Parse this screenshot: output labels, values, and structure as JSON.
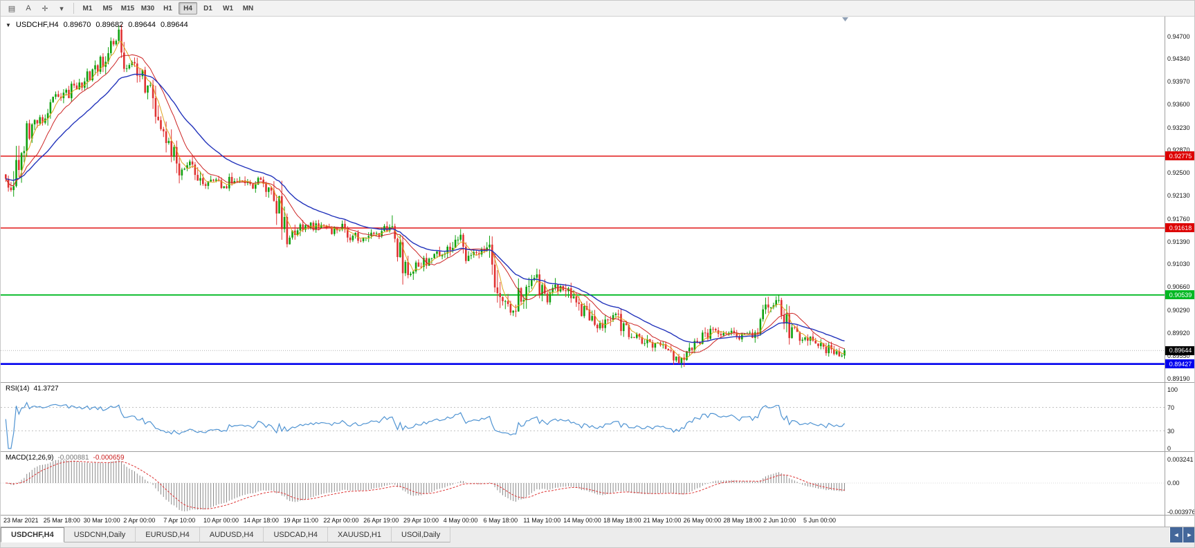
{
  "toolbar": {
    "icons": [
      {
        "name": "chart-grid-icon",
        "glyph": "▤"
      },
      {
        "name": "cursor-a-icon",
        "glyph": "A"
      },
      {
        "name": "crosshair-icon",
        "glyph": "✛"
      },
      {
        "name": "tools-dropdown-icon",
        "glyph": "▾"
      }
    ],
    "timeframes": [
      "M1",
      "M5",
      "M15",
      "M30",
      "H1",
      "H4",
      "D1",
      "W1",
      "MN"
    ],
    "active_timeframe": "H4"
  },
  "chart_header": {
    "expander": "▼",
    "symbol": "USDCHF,H4",
    "open": "0.89670",
    "high": "0.89682",
    "low": "0.89644",
    "close": "0.89644"
  },
  "rsi_panel": {
    "name": "RSI(14)",
    "value": "41.3727",
    "scale_labels": [
      "100",
      "70",
      "30",
      "0"
    ],
    "line_color": "#4f93d2",
    "level_line_color": "#c0c0c0"
  },
  "macd_panel": {
    "name": "MACD(12,26,9)",
    "value_main": "-0.000881",
    "value_signal": "-0.000659",
    "scale_labels": [
      "0.003241",
      "0.00",
      "-0.003976"
    ],
    "histogram_color": "#8a8a8a",
    "signal_color": "#dd3333"
  },
  "time_axis_labels": [
    "23 Mar 2021",
    "25 Mar 18:00",
    "30 Mar 10:00",
    "2 Apr 00:00",
    "7 Apr 10:00",
    "10 Apr 00:00",
    "14 Apr 18:00",
    "19 Apr 11:00",
    "22 Apr 00:00",
    "26 Apr 19:00",
    "29 Apr 10:00",
    "4 May 00:00",
    "6 May 18:00",
    "11 May 10:00",
    "14 May 00:00",
    "18 May 18:00",
    "21 May 10:00",
    "26 May 00:00",
    "28 May 18:00",
    "2 Jun 10:00",
    "5 Jun 00:00"
  ],
  "tab_bar": {
    "tabs": [
      "USDCHF,H4",
      "USDCNH,Daily",
      "EURUSD,H4",
      "AUDUSD,H4",
      "USDCAD,H4",
      "XAUUSD,H1",
      "USOil,Daily"
    ],
    "active_tab": "USDCHF,H4",
    "scroll_left": "◄",
    "scroll_right": "►"
  },
  "chart_data": {
    "type": "candlestick",
    "symbol": "USDCHF",
    "timeframe": "H4",
    "title": "USDCHF,H4",
    "ohlc_current": [
      0.8967,
      0.89682,
      0.89644,
      0.89644
    ],
    "last_price": 0.89644,
    "y_axis_labels": [
      "0.94700",
      "0.94340",
      "0.93970",
      "0.93600",
      "0.93230",
      "0.92870",
      "0.92500",
      "0.92130",
      "0.91760",
      "0.91390",
      "0.91030",
      "0.90660",
      "0.90290",
      "0.89920",
      "0.89550",
      "0.89190"
    ],
    "y_range": [
      0.8912,
      0.9499
    ],
    "x_axis_labels_see": "time_axis_labels",
    "bid": {
      "price": 0.89644,
      "label": "0.89644",
      "badge_color": "#000000"
    },
    "horizontal_lines": [
      {
        "price": 0.92775,
        "label": "0.92775",
        "color": "#dd0000",
        "width": 1.4
      },
      {
        "price": 0.91618,
        "label": "0.91618",
        "color": "#dd0000",
        "width": 1.4
      },
      {
        "price": 0.90539,
        "label": "0.90539",
        "color": "#00b822",
        "width": 1.8
      },
      {
        "price": 0.89427,
        "label": "0.89427",
        "color": "#0000ee",
        "width": 2.6
      }
    ],
    "moving_averages": [
      {
        "period": 5,
        "type": "sma",
        "color": "#dfa21b",
        "width": 1
      },
      {
        "period": 13,
        "type": "sma",
        "color": "#cc2222",
        "width": 1
      },
      {
        "period": 30,
        "type": "ema",
        "color": "#2233bb",
        "width": 1.4
      }
    ],
    "candle_up_color": "#0fa10f",
    "candle_down_color": "#e03232",
    "indicators": [
      {
        "name": "RSI",
        "period": 14,
        "current": 41.3727,
        "levels": [
          70,
          30
        ],
        "range": [
          0,
          100
        ]
      },
      {
        "name": "MACD",
        "fast": 12,
        "slow": 26,
        "signal": 9,
        "current_main": -0.000881,
        "current_signal": -0.000659,
        "scale": [
          0.003241,
          0.0,
          -0.003976
        ]
      }
    ],
    "price_path": [
      [
        0,
        0.924
      ],
      [
        1,
        0.9222
      ],
      [
        3,
        0.925
      ],
      [
        6,
        0.9295
      ],
      [
        10,
        0.933
      ],
      [
        14,
        0.934
      ],
      [
        18,
        0.9368
      ],
      [
        22,
        0.9372
      ],
      [
        26,
        0.939
      ],
      [
        30,
        0.9398
      ],
      [
        34,
        0.942
      ],
      [
        38,
        0.9438
      ],
      [
        41,
        0.9455
      ],
      [
        43,
        0.9465
      ],
      [
        45,
        0.942
      ],
      [
        49,
        0.9428
      ],
      [
        52,
        0.9405
      ],
      [
        55,
        0.9378
      ],
      [
        58,
        0.9335
      ],
      [
        62,
        0.9303
      ],
      [
        65,
        0.927
      ],
      [
        67,
        0.9252
      ],
      [
        70,
        0.9262
      ],
      [
        73,
        0.9242
      ],
      [
        76,
        0.9228
      ],
      [
        79,
        0.9238
      ],
      [
        83,
        0.9226
      ],
      [
        87,
        0.9242
      ],
      [
        91,
        0.9231
      ],
      [
        94,
        0.9226
      ],
      [
        97,
        0.924
      ],
      [
        101,
        0.9218
      ],
      [
        104,
        0.9192
      ],
      [
        107,
        0.9143
      ],
      [
        110,
        0.9156
      ],
      [
        114,
        0.917
      ],
      [
        117,
        0.9161
      ],
      [
        121,
        0.917
      ],
      [
        124,
        0.9156
      ],
      [
        128,
        0.9163
      ],
      [
        131,
        0.9151
      ],
      [
        135,
        0.9142
      ],
      [
        138,
        0.9146
      ],
      [
        142,
        0.9156
      ],
      [
        145,
        0.9166
      ],
      [
        148,
        0.9136
      ],
      [
        151,
        0.911
      ],
      [
        153,
        0.9084
      ],
      [
        156,
        0.9096
      ],
      [
        159,
        0.9106
      ],
      [
        162,
        0.9112
      ],
      [
        166,
        0.9126
      ],
      [
        169,
        0.9131
      ],
      [
        172,
        0.915
      ],
      [
        175,
        0.9119
      ],
      [
        178,
        0.9121
      ],
      [
        182,
        0.9129
      ],
      [
        185,
        0.9111
      ],
      [
        187,
        0.9062
      ],
      [
        190,
        0.9036
      ],
      [
        193,
        0.9021
      ],
      [
        195,
        0.9046
      ],
      [
        198,
        0.9061
      ],
      [
        201,
        0.9086
      ],
      [
        203,
        0.9066
      ],
      [
        206,
        0.9046
      ],
      [
        208,
        0.9056
      ],
      [
        211,
        0.9068
      ],
      [
        214,
        0.9056
      ],
      [
        216,
        0.9046
      ],
      [
        219,
        0.9031
      ],
      [
        222,
        0.9019
      ],
      [
        224,
        0.9009
      ],
      [
        227,
        0.9001
      ],
      [
        229,
        0.9013
      ],
      [
        232,
        0.9023
      ],
      [
        235,
        0.9001
      ],
      [
        237,
        0.8993
      ],
      [
        240,
        0.8986
      ],
      [
        243,
        0.8981
      ],
      [
        245,
        0.8976
      ],
      [
        248,
        0.8973
      ],
      [
        250,
        0.8969
      ],
      [
        253,
        0.8961
      ],
      [
        256,
        0.8949
      ],
      [
        258,
        0.8961
      ],
      [
        261,
        0.8973
      ],
      [
        264,
        0.8981
      ],
      [
        266,
        0.8989
      ],
      [
        269,
        0.8996
      ],
      [
        272,
        0.8993
      ],
      [
        274,
        0.8991
      ],
      [
        277,
        0.8993
      ],
      [
        279,
        0.8988
      ],
      [
        282,
        0.8986
      ],
      [
        285,
        0.8996
      ],
      [
        287,
        0.9001
      ],
      [
        290,
        0.9036
      ],
      [
        293,
        0.9043
      ],
      [
        295,
        0.9031
      ],
      [
        298,
        0.9001
      ],
      [
        300,
        0.8991
      ],
      [
        303,
        0.8986
      ],
      [
        306,
        0.8979
      ],
      [
        308,
        0.8973
      ],
      [
        311,
        0.8969
      ],
      [
        314,
        0.8963
      ],
      [
        316,
        0.8959
      ],
      [
        319,
        0.89644
      ]
    ]
  }
}
